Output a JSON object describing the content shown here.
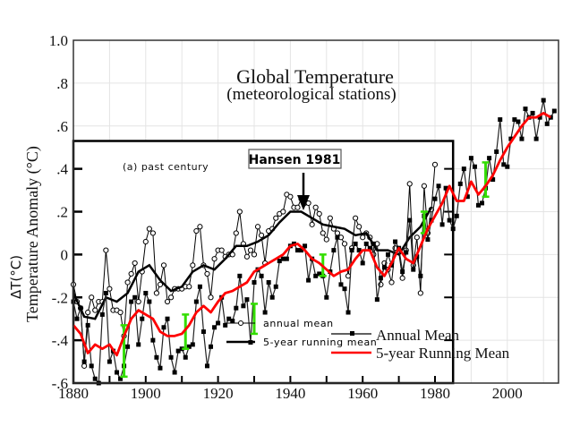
{
  "chart_data": {
    "type": "line",
    "title": "Global Temperature",
    "subtitle": "(meteorological stations)",
    "ylabel": "Temperature Anomaly (°C)",
    "ylabel_overlay": "ΔT(°C)",
    "xlabel": "",
    "xlim": [
      1880,
      2014
    ],
    "ylim": [
      -0.6,
      1.0
    ],
    "grid": true,
    "x_ticks": [
      1880,
      1900,
      1920,
      1940,
      1960,
      1980,
      2000
    ],
    "x_tick_labels": [
      "1880",
      "1900",
      "1920",
      "1940",
      "1960",
      "1980",
      "2000"
    ],
    "y_ticks": [
      -0.6,
      -0.4,
      -0.2,
      0,
      0.2,
      0.4,
      0.6,
      0.8,
      1.0
    ],
    "y_tick_labels": [
      "-.6",
      "-.4",
      "-.2",
      "0",
      ".2",
      ".4",
      ".6",
      ".8",
      "1.0"
    ],
    "inset": {
      "label": "(a) past century",
      "annotation": "Hansen 1981",
      "y_tick_labels": [
        "-0.4",
        "-.2",
        "0",
        ".2",
        "0.4"
      ],
      "xlim": [
        1880,
        1985
      ],
      "ylim_top": 0.53,
      "legend": [
        {
          "name": "annual mean",
          "style": "line-with-open-circle"
        },
        {
          "name": "5-year running mean",
          "style": "thick-line"
        }
      ]
    },
    "legend": {
      "position": "bottom-right",
      "entries": [
        {
          "name": "Annual Mean",
          "color": "#000000",
          "style": "line-with-square"
        },
        {
          "name": "5-year Running Mean",
          "color": "#ff0000",
          "style": "line"
        }
      ]
    },
    "series": [
      {
        "name": "Annual Mean",
        "color": "#000000",
        "x": [
          1880,
          1881,
          1882,
          1883,
          1884,
          1885,
          1886,
          1887,
          1888,
          1889,
          1890,
          1891,
          1892,
          1893,
          1894,
          1895,
          1896,
          1897,
          1898,
          1899,
          1900,
          1901,
          1902,
          1903,
          1904,
          1905,
          1906,
          1907,
          1908,
          1909,
          1910,
          1911,
          1912,
          1913,
          1914,
          1915,
          1916,
          1917,
          1918,
          1919,
          1920,
          1921,
          1922,
          1923,
          1924,
          1925,
          1926,
          1927,
          1928,
          1929,
          1930,
          1931,
          1932,
          1933,
          1934,
          1935,
          1936,
          1937,
          1938,
          1939,
          1940,
          1941,
          1942,
          1943,
          1944,
          1945,
          1946,
          1947,
          1948,
          1949,
          1950,
          1951,
          1952,
          1953,
          1954,
          1955,
          1956,
          1957,
          1958,
          1959,
          1960,
          1961,
          1962,
          1963,
          1964,
          1965,
          1966,
          1967,
          1968,
          1969,
          1970,
          1971,
          1972,
          1973,
          1974,
          1975,
          1976,
          1977,
          1978,
          1979,
          1980,
          1981,
          1982,
          1983,
          1984,
          1985,
          1986,
          1987,
          1988,
          1989,
          1990,
          1991,
          1992,
          1993,
          1994,
          1995,
          1996,
          1997,
          1998,
          1999,
          2000,
          2001,
          2002,
          2003,
          2004,
          2005,
          2006,
          2007,
          2008,
          2009,
          2010,
          2011,
          2012,
          2013
        ],
        "y": [
          -0.22,
          -0.3,
          -0.25,
          -0.5,
          -0.33,
          -0.52,
          -0.58,
          -0.6,
          -0.28,
          -0.18,
          -0.5,
          -0.45,
          -0.55,
          -0.58,
          -0.52,
          -0.43,
          -0.22,
          -0.2,
          -0.42,
          -0.3,
          -0.18,
          -0.22,
          -0.4,
          -0.48,
          -0.53,
          -0.34,
          -0.3,
          -0.48,
          -0.55,
          -0.45,
          -0.44,
          -0.48,
          -0.43,
          -0.42,
          -0.22,
          -0.15,
          -0.36,
          -0.52,
          -0.43,
          -0.34,
          -0.32,
          -0.2,
          -0.33,
          -0.3,
          -0.31,
          -0.25,
          -0.1,
          -0.24,
          -0.21,
          -0.41,
          -0.13,
          -0.07,
          -0.1,
          -0.27,
          -0.13,
          -0.2,
          -0.15,
          -0.03,
          -0.02,
          -0.02,
          0.04,
          0.05,
          0.02,
          0.02,
          0.04,
          -0.12,
          -0.02,
          -0.1,
          -0.09,
          -0.1,
          -0.2,
          -0.08,
          0.02,
          0.08,
          -0.14,
          -0.16,
          -0.27,
          0.02,
          0.05,
          0.02,
          -0.04,
          0.05,
          0.03,
          0.05,
          -0.21,
          -0.11,
          -0.06,
          0.0,
          -0.05,
          0.06,
          0.03,
          -0.08,
          0.01,
          0.16,
          -0.07,
          -0.01,
          -0.1,
          0.18,
          0.07,
          0.16,
          0.26,
          0.32,
          0.14,
          0.31,
          0.16,
          0.12,
          0.18,
          0.33,
          0.4,
          0.27,
          0.45,
          0.41,
          0.23,
          0.24,
          0.31,
          0.45,
          0.35,
          0.48,
          0.63,
          0.42,
          0.41,
          0.54,
          0.63,
          0.62,
          0.54,
          0.68,
          0.64,
          0.66,
          0.54,
          0.64,
          0.72,
          0.61,
          0.64,
          0.67
        ]
      },
      {
        "name": "5-year Running Mean",
        "color": "#ff0000",
        "x": [
          1880,
          1882,
          1884,
          1886,
          1888,
          1890,
          1892,
          1894,
          1896,
          1898,
          1900,
          1902,
          1904,
          1906,
          1908,
          1910,
          1912,
          1914,
          1916,
          1918,
          1920,
          1922,
          1924,
          1926,
          1928,
          1930,
          1932,
          1934,
          1936,
          1938,
          1940,
          1942,
          1944,
          1946,
          1948,
          1950,
          1952,
          1954,
          1956,
          1958,
          1960,
          1962,
          1964,
          1966,
          1968,
          1970,
          1972,
          1974,
          1976,
          1978,
          1980,
          1982,
          1984,
          1986,
          1988,
          1990,
          1992,
          1994,
          1996,
          1998,
          2000,
          2002,
          2004,
          2006,
          2008,
          2010,
          2012
        ],
        "y": [
          -0.33,
          -0.37,
          -0.46,
          -0.42,
          -0.44,
          -0.42,
          -0.47,
          -0.38,
          -0.3,
          -0.26,
          -0.28,
          -0.3,
          -0.36,
          -0.38,
          -0.38,
          -0.37,
          -0.33,
          -0.27,
          -0.24,
          -0.27,
          -0.22,
          -0.18,
          -0.17,
          -0.15,
          -0.13,
          -0.08,
          -0.06,
          -0.04,
          -0.02,
          0.0,
          0.04,
          0.05,
          0.02,
          -0.02,
          -0.04,
          -0.07,
          -0.1,
          -0.08,
          -0.07,
          -0.02,
          0.02,
          0.02,
          -0.06,
          -0.1,
          -0.04,
          0.03,
          -0.02,
          -0.04,
          0.04,
          0.12,
          0.18,
          0.24,
          0.32,
          0.25,
          0.25,
          0.34,
          0.28,
          0.32,
          0.37,
          0.44,
          0.5,
          0.55,
          0.6,
          0.64,
          0.64,
          0.66,
          0.64
        ]
      },
      {
        "name": "Hansen 1981 annual mean",
        "color": "#000000",
        "marker": "open-circle",
        "x": [
          1880,
          1881,
          1882,
          1883,
          1884,
          1885,
          1886,
          1887,
          1888,
          1889,
          1890,
          1891,
          1892,
          1893,
          1894,
          1895,
          1896,
          1897,
          1898,
          1899,
          1900,
          1901,
          1902,
          1903,
          1904,
          1905,
          1906,
          1907,
          1908,
          1909,
          1910,
          1911,
          1912,
          1913,
          1914,
          1915,
          1916,
          1917,
          1918,
          1919,
          1920,
          1921,
          1922,
          1923,
          1924,
          1925,
          1926,
          1927,
          1928,
          1929,
          1930,
          1931,
          1932,
          1933,
          1934,
          1935,
          1936,
          1937,
          1938,
          1939,
          1940,
          1941,
          1942,
          1943,
          1944,
          1945,
          1946,
          1947,
          1948,
          1949,
          1950,
          1951,
          1952,
          1953,
          1954,
          1955,
          1956,
          1957,
          1958,
          1959,
          1960,
          1961,
          1962,
          1963,
          1964,
          1965,
          1966,
          1967,
          1968,
          1969,
          1970,
          1971,
          1972,
          1973,
          1974,
          1975,
          1976,
          1977,
          1978,
          1979,
          1980
        ],
        "y": [
          -0.14,
          -0.22,
          -0.25,
          -0.52,
          -0.27,
          -0.2,
          -0.26,
          -0.22,
          -0.22,
          0.02,
          -0.16,
          -0.26,
          -0.26,
          -0.27,
          -0.38,
          -0.13,
          -0.09,
          -0.04,
          -0.22,
          -0.08,
          0.06,
          0.12,
          0.1,
          -0.18,
          -0.14,
          -0.05,
          -0.22,
          -0.2,
          -0.16,
          -0.16,
          -0.16,
          -0.15,
          -0.15,
          -0.05,
          0.11,
          0.13,
          -0.05,
          -0.09,
          -0.2,
          -0.02,
          0.02,
          0.02,
          -0.01,
          0.0,
          0.0,
          0.1,
          0.2,
          0.05,
          -0.01,
          0.02,
          0.0,
          0.13,
          0.09,
          -0.04,
          0.11,
          0.12,
          0.17,
          0.19,
          0.2,
          0.28,
          0.27,
          0.22,
          0.22,
          0.26,
          0.24,
          0.24,
          0.14,
          0.22,
          0.19,
          0.1,
          0.07,
          0.17,
          0.12,
          0.1,
          0.08,
          0.05,
          -0.1,
          0.03,
          0.17,
          0.13,
          0.08,
          0.1,
          0.08,
          0.0,
          0.05,
          -0.14,
          -0.04,
          -0.07,
          -0.13,
          0.03,
          0.01,
          -0.11,
          0.02,
          0.33,
          -0.05,
          0.08,
          -0.18,
          0.32,
          0.1,
          0.21,
          0.42
        ]
      },
      {
        "name": "Hansen 1981 5-year running mean",
        "color": "#000000",
        "x": [
          1880,
          1883,
          1886,
          1889,
          1892,
          1895,
          1898,
          1901,
          1904,
          1907,
          1910,
          1913,
          1916,
          1919,
          1922,
          1925,
          1928,
          1931,
          1934,
          1937,
          1940,
          1943,
          1946,
          1949,
          1952,
          1955,
          1958,
          1961,
          1964,
          1967,
          1970,
          1973,
          1976,
          1979
        ],
        "y": [
          -0.18,
          -0.29,
          -0.3,
          -0.2,
          -0.22,
          -0.18,
          -0.08,
          -0.05,
          -0.12,
          -0.17,
          -0.15,
          -0.08,
          -0.05,
          -0.07,
          -0.02,
          0.04,
          0.04,
          0.06,
          0.09,
          0.15,
          0.2,
          0.2,
          0.17,
          0.14,
          0.13,
          0.12,
          0.09,
          0.1,
          0.02,
          0.02,
          0.0,
          0.08,
          0.13,
          0.22
        ]
      }
    ],
    "error_bars": {
      "color": "#33dd00",
      "x": [
        1894,
        1911,
        1930,
        1949,
        1977,
        1994
      ],
      "y": [
        -0.45,
        -0.36,
        -0.3,
        -0.05,
        0.15,
        0.35
      ],
      "half_range": [
        0.12,
        0.08,
        0.07,
        0.05,
        0.05,
        0.08
      ]
    }
  }
}
